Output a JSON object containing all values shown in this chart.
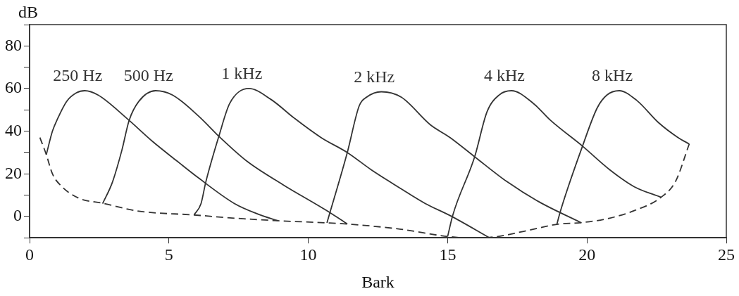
{
  "chart_data": {
    "type": "line",
    "xlabel": "Bark",
    "ylabel": "dB",
    "xlim": [
      0,
      25
    ],
    "xticks": [
      0,
      5,
      10,
      15,
      20,
      25
    ],
    "ylim": [
      -10,
      90
    ],
    "yticks": [
      {
        "value": -10,
        "label": null
      },
      0,
      {
        "value": 10,
        "label": null
      },
      20,
      {
        "value": 30,
        "label": null
      },
      40,
      {
        "value": 50,
        "label": null
      },
      60,
      {
        "value": 70,
        "label": null
      },
      80,
      {
        "value": 90,
        "label": null
      }
    ],
    "grid": false,
    "legend": false,
    "marker": "none",
    "series": [
      {
        "name": "250 Hz",
        "color": "#333333",
        "x": [
          0.6,
          0.82,
          1.01,
          1.33,
          1.68,
          1.98,
          2.45,
          3.49,
          4.43,
          5.29,
          6.07,
          7.36,
          8.22,
          8.91
        ],
        "values": [
          29,
          40,
          46,
          54,
          58,
          59,
          57,
          46,
          35,
          26,
          18,
          6,
          1,
          -2
        ]
      },
      {
        "name": "500 Hz",
        "color": "#333333",
        "x": [
          2.62,
          2.97,
          3.31,
          3.57,
          3.92,
          4.52,
          5.12,
          6.07,
          6.84,
          7.79,
          9.08,
          10.63,
          11.4
        ],
        "values": [
          6,
          16,
          31,
          45,
          54,
          59,
          57,
          47,
          37,
          26,
          15,
          3,
          -3.5
        ]
      },
      {
        "name": "1 kHz",
        "color": "#333333",
        "x": [
          5.9,
          6.15,
          6.32,
          6.8,
          7.18,
          7.87,
          8.65,
          9.51,
          10.46,
          11.4,
          12.25,
          13.33,
          14.21,
          15.09,
          16.5
        ],
        "values": [
          0.7,
          6,
          16,
          38,
          53,
          60,
          55,
          46,
          37,
          30,
          22,
          13,
          6,
          0.4,
          -10
        ]
      },
      {
        "name": "2 kHz",
        "color": "#333333",
        "x": [
          10.67,
          11.4,
          11.83,
          12.1,
          12.62,
          13.33,
          14.38,
          15.09,
          15.97,
          17.11,
          18.26,
          19.8
        ],
        "values": [
          -3,
          30,
          52,
          56,
          58.5,
          56,
          43,
          37,
          28,
          16.5,
          7,
          -3
        ]
      },
      {
        "name": "4 kHz",
        "color": "#333333",
        "x": [
          15.0,
          15.18,
          15.97,
          16.41,
          16.85,
          17.29,
          18.08,
          18.7,
          19.84,
          20.81,
          21.69,
          22.66
        ],
        "values": [
          -9.4,
          0.4,
          28,
          49,
          57,
          59,
          53,
          45,
          33,
          22,
          14,
          9
        ]
      },
      {
        "name": "8 kHz",
        "color": "#333333",
        "x": [
          18.92,
          19.05,
          19.84,
          20.37,
          20.72,
          21.16,
          21.78,
          22.57,
          23.27,
          23.67
        ],
        "values": [
          -3.7,
          2.6,
          33,
          51,
          57,
          59,
          54.5,
          44,
          37,
          34
        ]
      },
      {
        "color": "#333333",
        "line_style": "dashed",
        "x": [
          0.37,
          0.6,
          0.82,
          1.16,
          1.76,
          2.62,
          3.92,
          5.9,
          7.36,
          8.91,
          10.67,
          11.57,
          13.33,
          15.0,
          15.7,
          16.5,
          17.73,
          18.92,
          19.8,
          20.81,
          21.69,
          22.66,
          23.18,
          23.67
        ],
        "values": [
          37,
          29,
          20,
          14,
          8.6,
          6.2,
          2.5,
          0.7,
          -0.8,
          -2,
          -3,
          -3.7,
          -6,
          -9.4,
          -10,
          -9.8,
          -7,
          -3.7,
          -2.9,
          -0.8,
          2.7,
          9,
          16.5,
          34
        ]
      }
    ]
  }
}
